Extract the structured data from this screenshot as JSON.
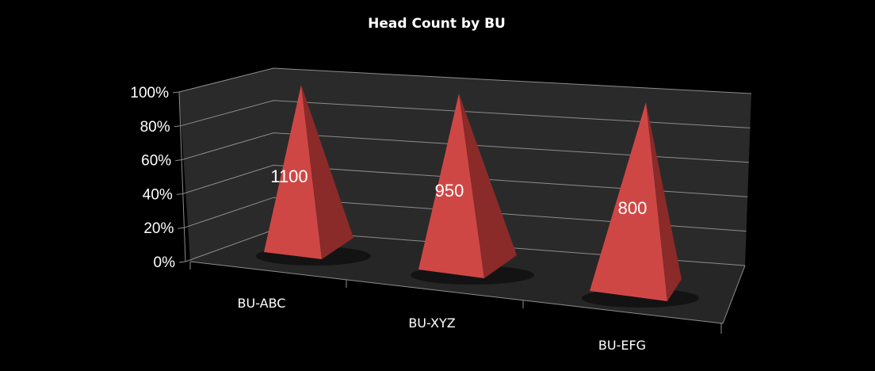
{
  "chart_data": {
    "type": "bar",
    "subtype": "3d-pyramid",
    "title": "Head Count by BU",
    "categories": [
      "BU-ABC",
      "BU-XYZ",
      "BU-EFG"
    ],
    "values": [
      1100,
      950,
      800
    ],
    "data_labels": [
      "1100",
      "950",
      "800"
    ],
    "y_ticks": [
      "0%",
      "20%",
      "40%",
      "60%",
      "80%",
      "100%"
    ],
    "ylim": [
      0,
      100
    ],
    "grid": true,
    "legend": "none",
    "colors": {
      "background": "#000000",
      "wall": "#2a2a2a",
      "floor": "#262626",
      "gridline": "#8c8c8c",
      "pyramid_front": "#cf4745",
      "pyramid_side": "#8a2a29"
    }
  }
}
